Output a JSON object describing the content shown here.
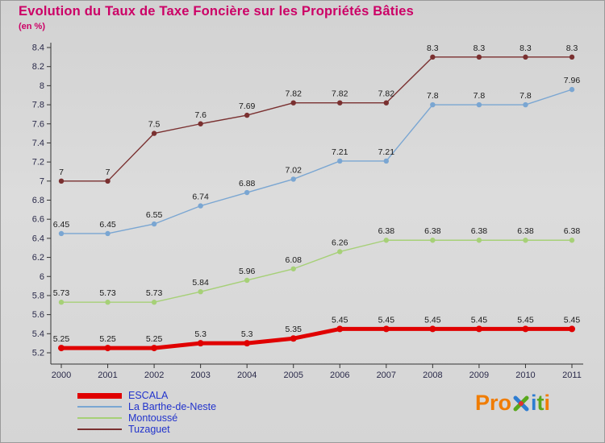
{
  "title": "Evolution du Taux de Taxe Foncière sur les Propriétés Bâties",
  "subtitle": "(en %)",
  "chart_data": {
    "type": "line",
    "x": [
      2000,
      2001,
      2002,
      2003,
      2004,
      2005,
      2006,
      2007,
      2008,
      2009,
      2010,
      2011
    ],
    "series": [
      {
        "name": "ESCALA",
        "color": "#e00000",
        "line_width": 5,
        "marker_r": 4,
        "values": [
          5.25,
          5.25,
          5.25,
          5.3,
          5.3,
          5.35,
          5.45,
          5.45,
          5.45,
          5.45,
          5.45,
          5.45
        ]
      },
      {
        "name": "La Barthe-de-Neste",
        "color": "#7aa6d2",
        "line_width": 1.4,
        "marker_r": 3.2,
        "values": [
          6.45,
          6.45,
          6.55,
          6.74,
          6.88,
          7.02,
          7.21,
          7.21,
          7.8,
          7.8,
          7.8,
          7.96
        ]
      },
      {
        "name": "Montoussé",
        "color": "#a6d077",
        "line_width": 1.4,
        "marker_r": 3.2,
        "values": [
          5.73,
          5.73,
          5.73,
          5.84,
          5.96,
          6.08,
          6.26,
          6.38,
          6.38,
          6.38,
          6.38,
          6.38
        ]
      },
      {
        "name": "Tuzaguet",
        "color": "#7a3030",
        "line_width": 1.4,
        "marker_r": 3.2,
        "values": [
          7,
          7,
          7.5,
          7.6,
          7.69,
          7.82,
          7.82,
          7.82,
          8.3,
          8.3,
          8.3,
          8.3
        ]
      }
    ],
    "ylim": [
      5.2,
      8.4
    ],
    "ytick_step": 0.2,
    "grid": false,
    "legend_position": "bottom-left",
    "title": "Evolution du Taux de Taxe Foncière sur les Propriétés Bâties",
    "ylabel": "(en %)",
    "xlabel": ""
  },
  "colors": {
    "title": "#cc0066",
    "legend_text": "#2233cc",
    "axis_line": "#333333",
    "axis_tick_label": "#2a2a4a",
    "value_label": "#1a1a1a"
  },
  "logo": {
    "text": "Proxiti",
    "letters": [
      {
        "ch": "P",
        "color": "#f07c00"
      },
      {
        "ch": "r",
        "color": "#f07c00"
      },
      {
        "ch": "o",
        "color": "#f07c00"
      },
      {
        "ch": "x",
        "color": "multi"
      },
      {
        "ch": "i",
        "color": "#2e7dd1"
      },
      {
        "ch": "t",
        "color": "#59a81c"
      },
      {
        "ch": "i",
        "color": "#f07c00"
      }
    ]
  }
}
